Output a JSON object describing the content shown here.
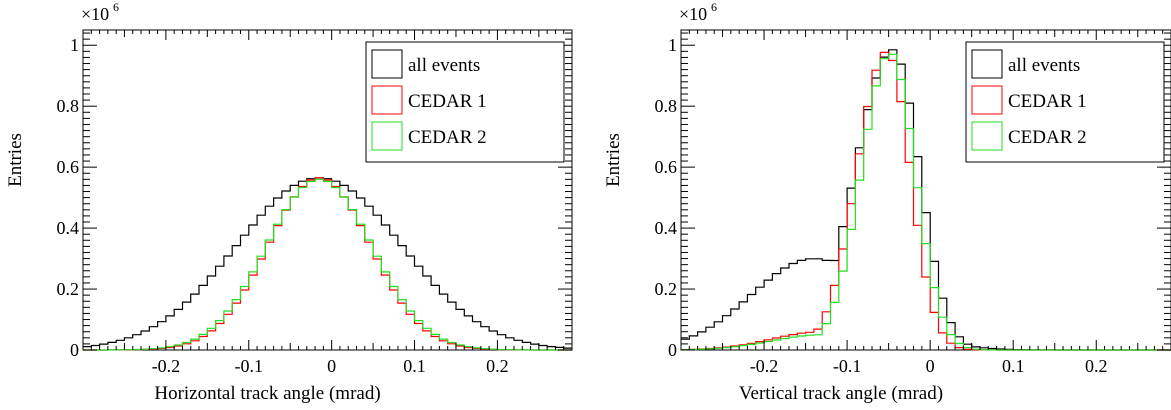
{
  "chart_data": [
    {
      "type": "histogram",
      "title": "",
      "xlabel": "Horizontal track angle (mrad)",
      "ylabel": "Entries",
      "y_multiplier_label": "×10",
      "y_multiplier_exp": "6",
      "xlim": [
        -0.3,
        0.29
      ],
      "ylim": [
        0,
        1.05
      ],
      "x_ticks": [
        -0.2,
        -0.1,
        0,
        0.1,
        0.2
      ],
      "x_tick_labels": [
        "-0.2",
        "-0.1",
        "0",
        "0.1",
        "0.2"
      ],
      "y_ticks": [
        0,
        0.2,
        0.4,
        0.6,
        0.8,
        1
      ],
      "y_tick_labels": [
        "0",
        "0.2",
        "0.4",
        "0.6",
        "0.8",
        "1"
      ],
      "legend": {
        "position": "top-right"
      },
      "bin_width": 0.01,
      "x_start": -0.3,
      "grid": false,
      "series": [
        {
          "name": "all events",
          "color": "#000000",
          "shape": "gauss",
          "mean": -0.015,
          "sigma": 0.1,
          "peak": 0.565,
          "skew": 0.0,
          "base": 0.0
        },
        {
          "name": "CEDAR 1",
          "color": "#ff0000",
          "shape": "gauss",
          "mean": -0.015,
          "sigma": 0.062,
          "peak": 0.565,
          "skew": 0.0,
          "base": 0.0
        },
        {
          "name": "CEDAR 2",
          "color": "#00ee00",
          "shape": "gauss",
          "mean": -0.015,
          "sigma": 0.064,
          "peak": 0.56,
          "skew": 0.0,
          "base": 0.0
        }
      ]
    },
    {
      "type": "histogram",
      "title": "",
      "xlabel": "Vertical track angle (mrad)",
      "ylabel": "Entries",
      "y_multiplier_label": "×10",
      "y_multiplier_exp": "6",
      "xlim": [
        -0.3,
        0.29
      ],
      "ylim": [
        0,
        1.05
      ],
      "x_ticks": [
        -0.2,
        -0.1,
        0,
        0.1,
        0.2
      ],
      "x_tick_labels": [
        "-0.2",
        "-0.1",
        "0",
        "0.1",
        "0.2"
      ],
      "y_ticks": [
        0,
        0.2,
        0.4,
        0.6,
        0.8,
        1
      ],
      "y_tick_labels": [
        "0",
        "0.2",
        "0.4",
        "0.6",
        "0.8",
        "1"
      ],
      "legend": {
        "position": "top-right"
      },
      "bin_width": 0.01,
      "x_start": -0.3,
      "grid": false,
      "series": [
        {
          "name": "all events",
          "color": "#000000",
          "shape": "skew",
          "mean": -0.045,
          "sigma_left": 0.045,
          "sigma_right": 0.032,
          "peak": 0.985,
          "tail_amp": 0.3,
          "tail_mean": -0.14,
          "tail_sigma": 0.075
        },
        {
          "name": "CEDAR 1",
          "color": "#ff0000",
          "shape": "skew",
          "mean": -0.052,
          "sigma_left": 0.036,
          "sigma_right": 0.028,
          "peak": 0.98,
          "tail_amp": 0.06,
          "tail_mean": -0.13,
          "tail_sigma": 0.06
        },
        {
          "name": "CEDAR 2",
          "color": "#00ee00",
          "shape": "skew",
          "mean": -0.048,
          "sigma_left": 0.035,
          "sigma_right": 0.03,
          "peak": 0.975,
          "tail_amp": 0.05,
          "tail_mean": -0.13,
          "tail_sigma": 0.06
        }
      ]
    }
  ]
}
